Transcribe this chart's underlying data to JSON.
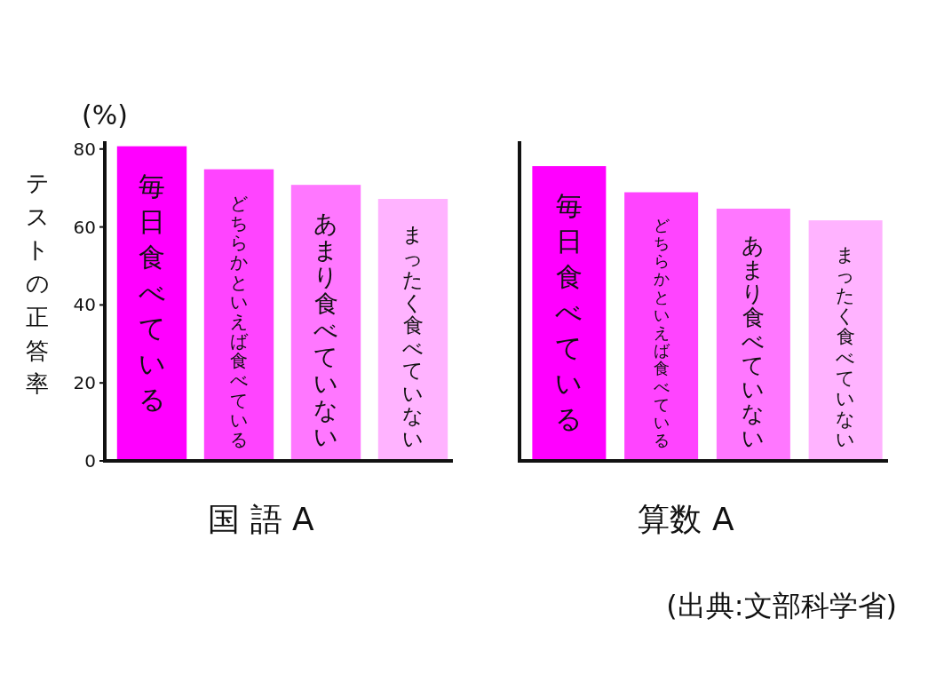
{
  "chart_data": [
    {
      "type": "bar",
      "xlabel": "国 語 A",
      "ylabel": "テストの正答率",
      "annotations": [
        "(%)"
      ],
      "categories": [
        "毎日食べている",
        "どちらかといえば食べている",
        "あまり食べていない",
        "まったく食べていない"
      ],
      "values": [
        80.7,
        74.8,
        70.8,
        67.2
      ],
      "colors": [
        "#ff00ff",
        "#ff44ff",
        "#ff77ff",
        "#ffb3ff"
      ],
      "ylim": [
        0,
        82
      ],
      "yticks": [
        0,
        20,
        40,
        60,
        80
      ]
    },
    {
      "type": "bar",
      "xlabel": "算数 A",
      "annotations": [
        "(出典:文部科学省)"
      ],
      "categories": [
        "毎日食べている",
        "どちらかといえば食べている",
        "あまり食べていない",
        "まったく食べていない"
      ],
      "values": [
        75.6,
        68.9,
        64.7,
        61.7
      ],
      "colors": [
        "#ff00ff",
        "#ff44ff",
        "#ff77ff",
        "#ffb3ff"
      ],
      "ylim": [
        0,
        82
      ],
      "tick_labels": "x"
    }
  ]
}
